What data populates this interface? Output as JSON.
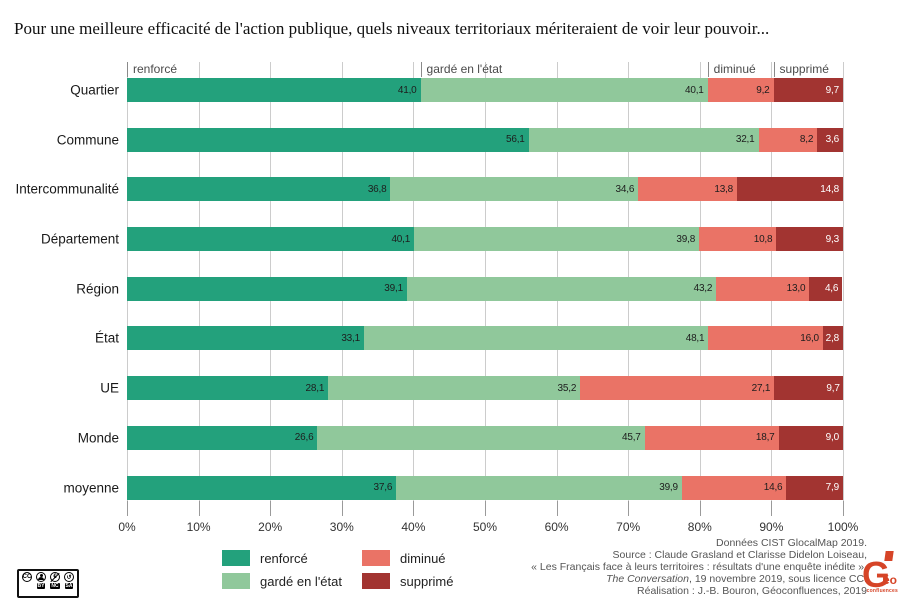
{
  "title": "Pour une meilleure efficacité de l'action publique, quels niveaux territoriaux mériteraient de voir leur pouvoir...",
  "chart_data": {
    "type": "bar",
    "orientation": "horizontal-stacked",
    "title": "Pour une meilleure efficacité de l'action publique, quels niveaux territoriaux mériteraient de voir leur pouvoir...",
    "categories": [
      "Quartier",
      "Commune",
      "Intercommunalité",
      "Département",
      "Région",
      "État",
      "UE",
      "Monde",
      "moyenne"
    ],
    "series": [
      {
        "name": "renforcé",
        "key": "renforce",
        "values": [
          41.0,
          56.1,
          36.8,
          40.1,
          39.1,
          33.1,
          28.1,
          26.6,
          37.6
        ]
      },
      {
        "name": "gardé en l'état",
        "key": "garde",
        "values": [
          40.1,
          32.1,
          34.6,
          39.8,
          43.2,
          48.1,
          35.2,
          45.7,
          39.9
        ]
      },
      {
        "name": "diminué",
        "key": "diminue",
        "values": [
          9.2,
          8.2,
          13.8,
          10.8,
          13.0,
          16.0,
          27.1,
          18.7,
          14.6
        ]
      },
      {
        "name": "supprimé",
        "key": "supprime",
        "values": [
          9.7,
          3.6,
          14.8,
          9.3,
          4.6,
          2.8,
          9.7,
          9.0,
          7.9
        ]
      }
    ],
    "column_headers": [
      "renforcé",
      "gardé en l'état",
      "diminué",
      "supprimé"
    ],
    "x_ticks": [
      "0%",
      "10%",
      "20%",
      "30%",
      "40%",
      "50%",
      "60%",
      "70%",
      "80%",
      "90%",
      "100%"
    ],
    "xlim": [
      0,
      100
    ],
    "grid": true,
    "legend_position": "bottom",
    "value_decimal_separator": ","
  },
  "colors": {
    "renforce": "#23A17C",
    "garde": "#90C89B",
    "diminue": "#EA7366",
    "supprime": "#A23431",
    "gridline": "#CCCCCC",
    "logo_red": "#D64427"
  },
  "legend": {
    "items": [
      {
        "label": "renforcé",
        "key": "renforce"
      },
      {
        "label": "diminué",
        "key": "diminue"
      },
      {
        "label": "gardé en l'état",
        "key": "garde"
      },
      {
        "label": "supprimé",
        "key": "supprime"
      }
    ]
  },
  "source": {
    "lines": [
      "Données CIST GlocalMap 2019.",
      "Source : Claude Grasland et Clarisse Didelon Loiseau,",
      "« Les Français face à leurs territoires : résultats d'une enquête inédite »,",
      {
        "italic": "The Conversation",
        "rest": ", 19 novembre 2019, sous licence CC."
      },
      "Réalisation : J.-B. Bouron, Géoconfluences, 2019"
    ]
  },
  "cc_badge": {
    "cc": "CC",
    "nc_symbol": "€",
    "sa_symbol": "↺",
    "chips": [
      "BY",
      "NC",
      "SA"
    ]
  },
  "logo": {
    "g": "G",
    "eo": "éo",
    "confluences": "confluences"
  }
}
